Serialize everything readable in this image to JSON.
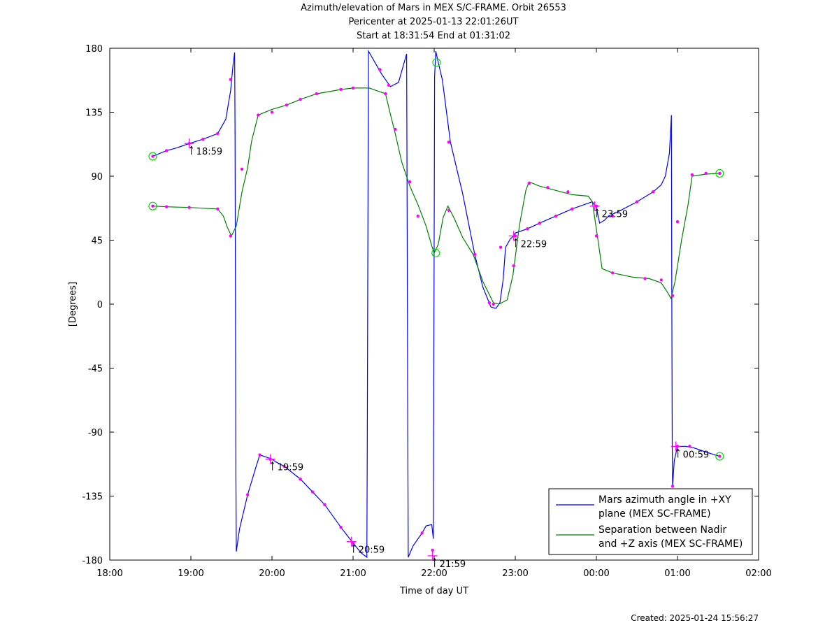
{
  "header": {
    "title_line1": "Azimuth/elevation of Mars in MEX S/C-FRAME.  Orbit 26553",
    "title_line2": "Pericenter at 2025-01-13 22:01:26UT",
    "title_line3": "Start at 18:31:54 End at 01:31:02"
  },
  "footer": {
    "created": "Created: 2025-01-24 15:56:27"
  },
  "colors": {
    "azimuth": "#0000ff",
    "separation": "#008000",
    "marker": "#ff00ff",
    "circle": "#00dd00"
  },
  "chart_data": {
    "type": "line",
    "title": "Azimuth/elevation of Mars in MEX S/C-FRAME.  Orbit 26553",
    "xlabel": "Time of day UT",
    "ylabel": "[Degrees]",
    "xlim": [
      18.0,
      26.0
    ],
    "ylim": [
      -180,
      180
    ],
    "x_ticks": [
      18,
      19,
      20,
      21,
      22,
      23,
      24,
      25,
      26
    ],
    "x_tick_labels": [
      "18:00",
      "19:00",
      "20:00",
      "21:00",
      "22:00",
      "23:00",
      "00:00",
      "01:00",
      "02:00"
    ],
    "y_ticks": [
      180,
      135,
      90,
      45,
      0,
      -45,
      -90,
      -135,
      -180
    ],
    "y_tick_labels": [
      "180",
      "135",
      "90",
      "45",
      "0",
      "-45",
      "-90",
      "-135",
      "-180"
    ],
    "grid": false,
    "legend_position": "bottom-right",
    "series": [
      {
        "name": "Mars azimuth angle in +XY plane (MEX SC-FRAME)",
        "legend_lines": [
          "Mars azimuth angle in +XY",
          "plane (MEX SC-FRAME)"
        ],
        "color": "#0000ff",
        "points": [
          [
            18.53,
            104
          ],
          [
            18.7,
            108
          ],
          [
            18.83,
            110
          ],
          [
            18.98,
            113
          ],
          [
            19.15,
            116
          ],
          [
            19.33,
            120
          ],
          [
            19.43,
            130
          ],
          [
            19.49,
            150
          ],
          [
            19.52,
            168
          ],
          [
            19.54,
            177
          ],
          [
            19.545,
            120
          ],
          [
            19.55,
            0
          ],
          [
            19.555,
            -120
          ],
          [
            19.56,
            -174
          ],
          [
            19.6,
            -158
          ],
          [
            19.7,
            -134
          ],
          [
            19.8,
            -115
          ],
          [
            19.85,
            -106
          ],
          [
            19.95,
            -108
          ],
          [
            20.0,
            -109
          ],
          [
            20.05,
            -111
          ],
          [
            20.15,
            -114
          ],
          [
            20.35,
            -123
          ],
          [
            20.5,
            -132
          ],
          [
            20.65,
            -141
          ],
          [
            20.85,
            -157
          ],
          [
            21.0,
            -168
          ],
          [
            21.1,
            -175
          ],
          [
            21.17,
            -178
          ],
          [
            21.175,
            -100
          ],
          [
            21.18,
            0
          ],
          [
            21.185,
            100
          ],
          [
            21.19,
            178
          ],
          [
            21.35,
            162
          ],
          [
            21.46,
            153
          ],
          [
            21.56,
            156
          ],
          [
            21.66,
            176
          ],
          [
            21.665,
            100
          ],
          [
            21.67,
            0
          ],
          [
            21.675,
            -100
          ],
          [
            21.68,
            -178
          ],
          [
            21.74,
            -170
          ],
          [
            21.85,
            -161
          ],
          [
            21.9,
            -156
          ],
          [
            21.97,
            -155
          ],
          [
            21.99,
            -165
          ],
          [
            21.995,
            -50
          ],
          [
            22.0,
            50
          ],
          [
            22.005,
            160
          ],
          [
            22.02,
            178
          ],
          [
            22.05,
            170
          ],
          [
            22.1,
            158
          ],
          [
            22.2,
            114
          ],
          [
            22.35,
            78
          ],
          [
            22.5,
            35
          ],
          [
            22.6,
            12
          ],
          [
            22.7,
            -2
          ],
          [
            22.76,
            -3
          ],
          [
            22.81,
            1
          ],
          [
            22.85,
            17
          ],
          [
            22.88,
            40
          ],
          [
            22.94,
            46
          ],
          [
            22.98,
            48
          ],
          [
            23.0,
            50
          ],
          [
            23.15,
            53
          ],
          [
            23.3,
            57
          ],
          [
            23.5,
            62
          ],
          [
            23.7,
            67
          ],
          [
            23.9,
            71
          ],
          [
            23.95,
            72
          ],
          [
            24.0,
            68
          ],
          [
            24.04,
            57
          ],
          [
            24.1,
            59
          ],
          [
            24.15,
            62
          ],
          [
            24.3,
            66
          ],
          [
            24.5,
            72
          ],
          [
            24.7,
            79
          ],
          [
            24.8,
            84
          ],
          [
            24.85,
            90
          ],
          [
            24.9,
            106
          ],
          [
            24.925,
            133
          ],
          [
            24.93,
            0
          ],
          [
            24.935,
            -100
          ],
          [
            24.94,
            -128
          ],
          [
            24.96,
            -110
          ],
          [
            25.0,
            -100
          ],
          [
            25.1,
            -100
          ],
          [
            25.2,
            -101
          ],
          [
            25.35,
            -104
          ],
          [
            25.52,
            -107
          ]
        ],
        "markers": [
          [
            18.53,
            104
          ],
          [
            18.7,
            108
          ],
          [
            18.98,
            113
          ],
          [
            19.15,
            116
          ],
          [
            19.33,
            120
          ],
          [
            19.49,
            158
          ],
          [
            19.7,
            -134
          ],
          [
            19.85,
            -106
          ],
          [
            19.98,
            -109
          ],
          [
            20.15,
            -114
          ],
          [
            20.35,
            -123
          ],
          [
            20.5,
            -132
          ],
          [
            20.65,
            -141
          ],
          [
            20.85,
            -157
          ],
          [
            21.0,
            -168
          ],
          [
            21.33,
            165
          ],
          [
            21.44,
            154
          ],
          [
            21.85,
            -161
          ],
          [
            21.98,
            -173
          ],
          [
            22.18,
            114
          ],
          [
            22.68,
            1
          ],
          [
            22.82,
            40
          ],
          [
            23.0,
            48
          ],
          [
            23.15,
            53
          ],
          [
            23.3,
            57
          ],
          [
            23.5,
            62
          ],
          [
            23.7,
            67
          ],
          [
            24.0,
            69
          ],
          [
            24.2,
            62
          ],
          [
            24.5,
            72
          ],
          [
            24.7,
            79
          ],
          [
            24.94,
            -128
          ],
          [
            25.0,
            -100
          ],
          [
            25.15,
            -100
          ],
          [
            25.52,
            -107
          ]
        ]
      },
      {
        "name": "Separation between Nadir and +Z axis (MEX SC-FRAME)",
        "legend_lines": [
          "Separation between Nadir",
          "and +Z axis (MEX SC-FRAME)"
        ],
        "color": "#008000",
        "points": [
          [
            18.53,
            69
          ],
          [
            18.7,
            68.5
          ],
          [
            18.98,
            68
          ],
          [
            19.15,
            67.5
          ],
          [
            19.33,
            67
          ],
          [
            19.4,
            62
          ],
          [
            19.45,
            54
          ],
          [
            19.5,
            48
          ],
          [
            19.56,
            55
          ],
          [
            19.63,
            79
          ],
          [
            19.7,
            96
          ],
          [
            19.75,
            115
          ],
          [
            19.83,
            133
          ],
          [
            20.0,
            137
          ],
          [
            20.18,
            140
          ],
          [
            20.35,
            144
          ],
          [
            20.55,
            148
          ],
          [
            20.85,
            151
          ],
          [
            21.0,
            152
          ],
          [
            21.2,
            152
          ],
          [
            21.4,
            148
          ],
          [
            21.45,
            136
          ],
          [
            21.52,
            120
          ],
          [
            21.6,
            100
          ],
          [
            21.7,
            83
          ],
          [
            21.8,
            70
          ],
          [
            21.9,
            55
          ],
          [
            21.97,
            41
          ],
          [
            22.0,
            36
          ],
          [
            22.05,
            42
          ],
          [
            22.11,
            61
          ],
          [
            22.17,
            69
          ],
          [
            22.25,
            60
          ],
          [
            22.35,
            47
          ],
          [
            22.48,
            35
          ],
          [
            22.6,
            16
          ],
          [
            22.73,
            1
          ],
          [
            22.8,
            0
          ],
          [
            22.9,
            3
          ],
          [
            22.97,
            20
          ],
          [
            23.05,
            55
          ],
          [
            23.13,
            80
          ],
          [
            23.17,
            86
          ],
          [
            23.3,
            83
          ],
          [
            23.5,
            80
          ],
          [
            23.7,
            77
          ],
          [
            23.9,
            76
          ],
          [
            23.95,
            72
          ],
          [
            24.02,
            45
          ],
          [
            24.07,
            25
          ],
          [
            24.2,
            22
          ],
          [
            24.45,
            19
          ],
          [
            24.65,
            18
          ],
          [
            24.8,
            15
          ],
          [
            24.88,
            8
          ],
          [
            24.92,
            4
          ],
          [
            24.97,
            16
          ],
          [
            25.05,
            45
          ],
          [
            25.13,
            70
          ],
          [
            25.18,
            90
          ],
          [
            25.35,
            91.5
          ],
          [
            25.52,
            92
          ]
        ],
        "markers": [
          [
            18.53,
            69
          ],
          [
            18.7,
            68.5
          ],
          [
            18.98,
            68
          ],
          [
            19.33,
            67
          ],
          [
            19.49,
            48
          ],
          [
            19.63,
            95
          ],
          [
            19.83,
            133
          ],
          [
            20.0,
            135
          ],
          [
            20.18,
            140
          ],
          [
            20.35,
            144
          ],
          [
            20.55,
            148
          ],
          [
            20.85,
            151
          ],
          [
            21.0,
            152
          ],
          [
            21.4,
            148
          ],
          [
            21.52,
            123
          ],
          [
            21.7,
            86
          ],
          [
            21.8,
            62
          ],
          [
            22.18,
            66
          ],
          [
            22.5,
            35
          ],
          [
            22.73,
            0
          ],
          [
            22.98,
            27
          ],
          [
            23.17,
            85
          ],
          [
            23.4,
            82
          ],
          [
            23.65,
            79
          ],
          [
            24.0,
            48
          ],
          [
            24.2,
            22
          ],
          [
            24.6,
            18
          ],
          [
            24.8,
            17
          ],
          [
            24.94,
            6
          ],
          [
            25.0,
            58
          ],
          [
            25.18,
            91
          ],
          [
            25.35,
            92
          ],
          [
            25.52,
            92
          ]
        ]
      }
    ],
    "hour_ticks": [
      {
        "label": "18:59",
        "x": 18.98,
        "y": 113
      },
      {
        "label": "19:59",
        "x": 19.98,
        "y": -109
      },
      {
        "label": "20:59",
        "x": 20.98,
        "y": -167
      },
      {
        "label": "21:59",
        "x": 21.98,
        "y": -177
      },
      {
        "label": "22:59",
        "x": 22.98,
        "y": 48
      },
      {
        "label": "23:59",
        "x": 23.98,
        "y": 69
      },
      {
        "label": "00:59",
        "x": 24.98,
        "y": -100
      }
    ],
    "start_end_circles": [
      {
        "x": 18.53,
        "y": 104
      },
      {
        "x": 18.53,
        "y": 69
      },
      {
        "x": 22.03,
        "y": 170
      },
      {
        "x": 22.02,
        "y": 36
      },
      {
        "x": 25.52,
        "y": -107
      },
      {
        "x": 25.52,
        "y": 92
      }
    ]
  }
}
